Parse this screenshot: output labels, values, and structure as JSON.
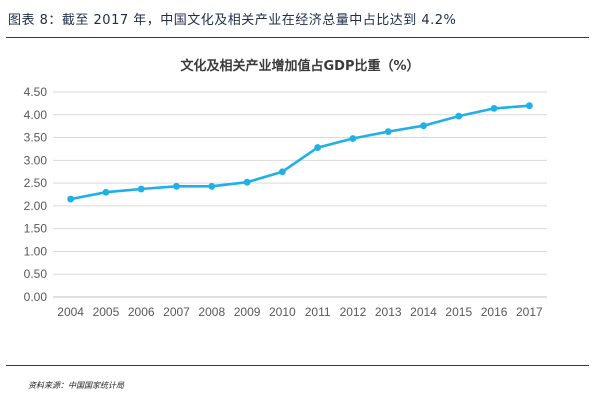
{
  "figure": {
    "heading": "图表 8：截至 2017 年，中国文化及相关产业在经济总量中占比达到 4.2%",
    "source": "资料来源：中国国家统计局"
  },
  "colors": {
    "line": "#1fb0e8",
    "grid": "#d9d9d9",
    "axis": "#bfbfbf",
    "heading": "#1f2d4b"
  },
  "chart_data": {
    "type": "line",
    "title": "文化及相关产业增加值占GDP比重（%）",
    "xlabel": "",
    "ylabel": "",
    "x": [
      "2004",
      "2005",
      "2006",
      "2007",
      "2008",
      "2009",
      "2010",
      "2011",
      "2012",
      "2013",
      "2014",
      "2015",
      "2016",
      "2017"
    ],
    "series": [
      {
        "values": [
          2.15,
          2.3,
          2.37,
          2.43,
          2.43,
          2.52,
          2.75,
          3.28,
          3.48,
          3.63,
          3.76,
          3.97,
          4.14,
          4.2
        ]
      }
    ],
    "ylim": [
      0,
      4.5
    ],
    "yticks": [
      "0.00",
      "0.50",
      "1.00",
      "1.50",
      "2.00",
      "2.50",
      "3.00",
      "3.50",
      "4.00",
      "4.50"
    ],
    "grid": true,
    "legend": "none",
    "markers": true
  }
}
